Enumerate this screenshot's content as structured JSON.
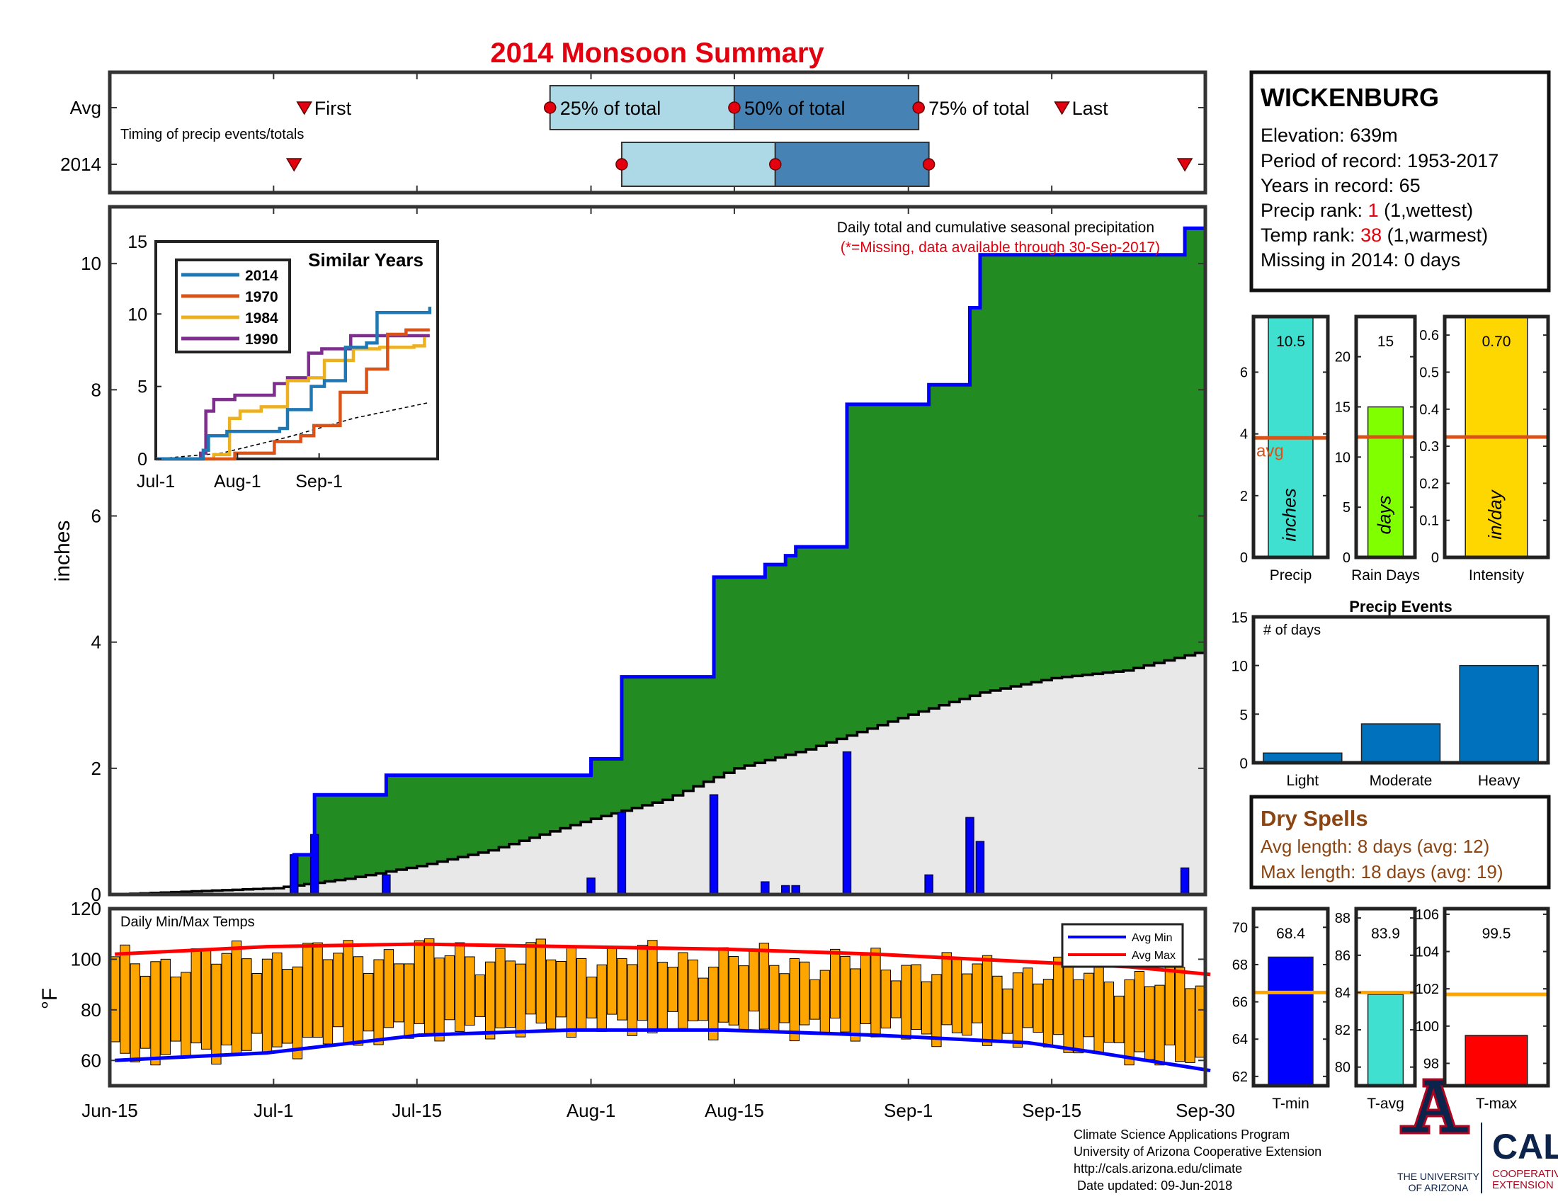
{
  "title": "2014 Monsoon Summary",
  "footer": {
    "lines": [
      "Climate Science Applications Program",
      "University of Arizona Cooperative Extension",
      "http://cals.arizona.edu/climate",
      " Date updated: 09-Jun-2018"
    ],
    "logo_ua_text": [
      "THE UNIVERSITY",
      "OF ARIZONA"
    ],
    "logo_cals_text": [
      "CALS",
      "COOPERATIVE",
      "EXTENSION"
    ]
  },
  "station": {
    "name": "WICKENBURG",
    "elevation": "Elevation: 639m",
    "period": "Period of record: 1953-2017",
    "years": "Years in record: 65",
    "precip_rank_prefix": "Precip rank: ",
    "precip_rank_value": "1",
    "precip_rank_suffix": " (1,wettest)",
    "temp_rank_prefix": "Temp rank: ",
    "temp_rank_value": "38",
    "temp_rank_suffix": " (1,warmest)",
    "missing": "Missing in 2014: 0 days"
  },
  "dry_spells": {
    "title": "Dry Spells",
    "avg_length": "Avg length: 8 days (avg: 12)",
    "max_length": "Max length: 18 days (avg: 19)"
  },
  "chart_data": [
    {
      "id": "timing",
      "type": "box",
      "ylabels": [
        "Avg",
        "2014"
      ],
      "annotation": "Timing of precip events/totals",
      "labels": {
        "first": "First",
        "p25": "25% of total",
        "p50": "50% of total",
        "p75": "75% of total",
        "last": "Last"
      },
      "x_range": [
        "Jun-15",
        "Sep-30"
      ],
      "avg": {
        "first": "Jul-4",
        "p25": "Jul-28",
        "p50": "Aug-15",
        "p75": "Sep-2",
        "last": "Sep-16"
      },
      "y2014": {
        "first": "Jul-3",
        "p25": "Aug-4",
        "p50": "Aug-19",
        "p75": "Sep-3",
        "last": "Sep-28"
      }
    },
    {
      "id": "main_precip",
      "type": "area",
      "ylabel": "inches",
      "ylim": [
        0,
        10.5
      ],
      "yticks": [
        0,
        2,
        4,
        6,
        8,
        10
      ],
      "xticks": [
        "Jun-15",
        "Jul-1",
        "Jul-15",
        "Aug-1",
        "Aug-15",
        "Sep-1",
        "Sep-15",
        "Sep-30"
      ],
      "annotation": "Daily total and cumulative seasonal precipitation",
      "missing_note": "(*=Missing, data available through 30-Sep-2017)",
      "daily_bars": [
        {
          "date": "Jul-3",
          "value": 0.63
        },
        {
          "date": "Jul-5",
          "value": 0.95
        },
        {
          "date": "Jul-12",
          "value": 0.31
        },
        {
          "date": "Aug-1",
          "value": 0.26
        },
        {
          "date": "Aug-4",
          "value": 1.3
        },
        {
          "date": "Aug-13",
          "value": 1.58
        },
        {
          "date": "Aug-18",
          "value": 0.2
        },
        {
          "date": "Aug-20",
          "value": 0.14
        },
        {
          "date": "Aug-21",
          "value": 0.14
        },
        {
          "date": "Aug-26",
          "value": 2.26
        },
        {
          "date": "Sep-3",
          "value": 0.31
        },
        {
          "date": "Sep-7",
          "value": 1.22
        },
        {
          "date": "Sep-8",
          "value": 0.84
        },
        {
          "date": "Sep-28",
          "value": 0.42
        }
      ],
      "cumulative_2014_steps": [
        {
          "date": "Jun-15",
          "value": 0.0
        },
        {
          "date": "Jul-3",
          "value": 0.63
        },
        {
          "date": "Jul-5",
          "value": 1.58
        },
        {
          "date": "Jul-12",
          "value": 1.89
        },
        {
          "date": "Aug-1",
          "value": 2.15
        },
        {
          "date": "Aug-4",
          "value": 3.45
        },
        {
          "date": "Aug-13",
          "value": 5.03
        },
        {
          "date": "Aug-18",
          "value": 5.23
        },
        {
          "date": "Aug-20",
          "value": 5.37
        },
        {
          "date": "Aug-21",
          "value": 5.51
        },
        {
          "date": "Aug-26",
          "value": 7.77
        },
        {
          "date": "Sep-3",
          "value": 8.08
        },
        {
          "date": "Sep-7",
          "value": 9.3
        },
        {
          "date": "Sep-8",
          "value": 10.14
        },
        {
          "date": "Sep-28",
          "value": 10.56
        }
      ],
      "cumulative_avg": [
        {
          "date": "Jun-15",
          "value": 0.0
        },
        {
          "date": "Jul-1",
          "value": 0.1
        },
        {
          "date": "Jul-8",
          "value": 0.25
        },
        {
          "date": "Jul-15",
          "value": 0.45
        },
        {
          "date": "Jul-22",
          "value": 0.7
        },
        {
          "date": "Aug-1",
          "value": 1.2
        },
        {
          "date": "Aug-8",
          "value": 1.5
        },
        {
          "date": "Aug-15",
          "value": 2.0
        },
        {
          "date": "Aug-22",
          "value": 2.3
        },
        {
          "date": "Sep-1",
          "value": 2.85
        },
        {
          "date": "Sep-8",
          "value": 3.2
        },
        {
          "date": "Sep-15",
          "value": 3.43
        },
        {
          "date": "Sep-22",
          "value": 3.55
        },
        {
          "date": "Sep-30",
          "value": 3.87
        }
      ]
    },
    {
      "id": "similar_years",
      "type": "line",
      "title": "Similar Years",
      "ylim": [
        0,
        15
      ],
      "yticks": [
        0,
        5,
        10,
        15
      ],
      "xticks": [
        "Jul-1",
        "Aug-1",
        "Sep-1"
      ],
      "series": [
        {
          "name": "2014",
          "color": "#1f77b4",
          "values": [
            [
              0,
              0
            ],
            [
              18,
              0.6
            ],
            [
              20,
              1.6
            ],
            [
              27,
              1.9
            ],
            [
              47,
              2.1
            ],
            [
              50,
              3.4
            ],
            [
              59,
              5.0
            ],
            [
              64,
              5.4
            ],
            [
              72,
              7.7
            ],
            [
              80,
              8.0
            ],
            [
              84,
              10.1
            ],
            [
              104,
              10.5
            ]
          ]
        },
        {
          "name": "1970",
          "color": "#d95319",
          "values": [
            [
              0,
              0
            ],
            [
              30,
              0.4
            ],
            [
              45,
              1.2
            ],
            [
              55,
              1.6
            ],
            [
              60,
              2.3
            ],
            [
              70,
              4.6
            ],
            [
              80,
              6.2
            ],
            [
              88,
              8.6
            ],
            [
              95,
              8.9
            ],
            [
              104,
              8.9
            ]
          ]
        },
        {
          "name": "1984",
          "color": "#edb120",
          "values": [
            [
              0,
              0
            ],
            [
              22,
              0.3
            ],
            [
              28,
              2.8
            ],
            [
              32,
              3.3
            ],
            [
              40,
              3.6
            ],
            [
              50,
              5.4
            ],
            [
              58,
              5.6
            ],
            [
              64,
              6.8
            ],
            [
              75,
              7.6
            ],
            [
              85,
              7.7
            ],
            [
              98,
              7.8
            ],
            [
              102,
              8.4
            ]
          ]
        },
        {
          "name": "1990",
          "color": "#7e2f8e",
          "values": [
            [
              0,
              0
            ],
            [
              17,
              0.4
            ],
            [
              19,
              3.3
            ],
            [
              22,
              4.1
            ],
            [
              30,
              4.4
            ],
            [
              45,
              5.2
            ],
            [
              50,
              5.6
            ],
            [
              58,
              7.3
            ],
            [
              63,
              7.6
            ],
            [
              74,
              8.5
            ],
            [
              104,
              8.5
            ]
          ]
        }
      ],
      "avg_line": [
        [
          0,
          0
        ],
        [
          25,
          0.4
        ],
        [
          50,
          1.5
        ],
        [
          75,
          2.8
        ],
        [
          104,
          3.9
        ]
      ]
    },
    {
      "id": "temps",
      "type": "bar",
      "ylabel": "°F",
      "annotation": "Daily Min/Max Temps",
      "ylim": [
        50,
        120
      ],
      "yticks": [
        60,
        80,
        100,
        120
      ],
      "legend": [
        "Avg Min",
        "Avg Max"
      ],
      "avg_min": [
        [
          0,
          60
        ],
        [
          15,
          63
        ],
        [
          30,
          70
        ],
        [
          45,
          72
        ],
        [
          60,
          72
        ],
        [
          75,
          70
        ],
        [
          90,
          67
        ],
        [
          97,
          63
        ],
        [
          108,
          56
        ]
      ],
      "avg_max": [
        [
          0,
          102
        ],
        [
          15,
          105
        ],
        [
          30,
          106
        ],
        [
          45,
          105
        ],
        [
          60,
          104
        ],
        [
          75,
          102
        ],
        [
          90,
          99
        ],
        [
          100,
          97
        ],
        [
          108,
          94
        ]
      ]
    },
    {
      "id": "precip_totals",
      "type": "bar",
      "panels": [
        {
          "label": "Precip",
          "value": 10.5,
          "value_text": "10.5",
          "avg": 3.87,
          "avg_label": "avg",
          "unit": "inches",
          "ylim": [
            0,
            7.8
          ],
          "yticks": [
            0,
            2,
            4,
            6
          ],
          "color": "#40e0d0"
        },
        {
          "label": "Rain Days",
          "value": 15,
          "value_text": "15",
          "avg": 12,
          "unit": "days",
          "ylim": [
            0,
            24
          ],
          "yticks": [
            0,
            5,
            10,
            15,
            20
          ],
          "color": "#7fff00"
        },
        {
          "label": "Intensity",
          "value": 0.7,
          "value_text": "0.70",
          "avg": 0.325,
          "unit": "in/day",
          "ylim": [
            0,
            0.65
          ],
          "yticks": [
            0,
            0.1,
            0.2,
            0.3,
            0.4,
            0.5,
            0.6
          ],
          "color": "#ffd700"
        }
      ]
    },
    {
      "id": "precip_events",
      "type": "bar",
      "title": "Precip Events",
      "annotation": "# of days",
      "categories": [
        "Light",
        "Moderate",
        "Heavy"
      ],
      "values": [
        1,
        4,
        10
      ],
      "ylim": [
        0,
        15
      ],
      "yticks": [
        0,
        5,
        10,
        15
      ]
    },
    {
      "id": "temp_totals",
      "type": "bar",
      "panels": [
        {
          "label": "T-min",
          "value": 68.4,
          "value_text": "68.4",
          "avg": 66.5,
          "ylim": [
            61.5,
            71
          ],
          "yticks": [
            62,
            64,
            66,
            68,
            70
          ],
          "color": "#0000ff"
        },
        {
          "label": "T-avg",
          "value": 83.9,
          "value_text": "83.9",
          "avg": 84.0,
          "ylim": [
            79,
            88.5
          ],
          "yticks": [
            80,
            82,
            84,
            86,
            88
          ],
          "color": "#40e0d0"
        },
        {
          "label": "T-max",
          "value": 99.5,
          "value_text": "99.5",
          "avg": 101.7,
          "ylim": [
            96.8,
            106.3
          ],
          "yticks": [
            98,
            100,
            102,
            104,
            106
          ],
          "color": "#ff0000"
        }
      ]
    }
  ]
}
